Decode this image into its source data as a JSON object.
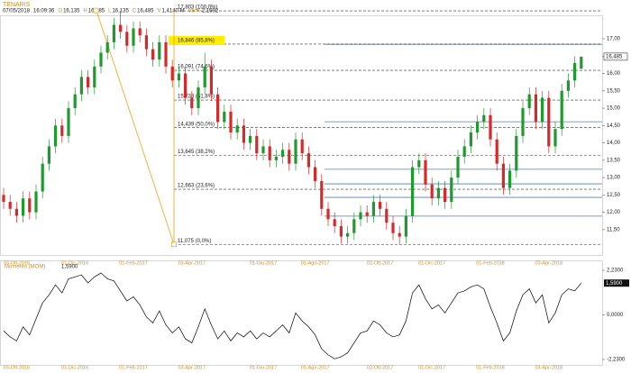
{
  "header": {
    "title": "TENARIS",
    "fields": [
      {
        "label": "D",
        "value": "07/05/2018"
      },
      {
        "label": "T",
        "value": "16:09:36"
      },
      {
        "label": "O",
        "value": "16,135"
      },
      {
        "label": "H",
        "value": "16,485"
      },
      {
        "label": "L",
        "value": "16,135"
      },
      {
        "label": "C",
        "value": "16,485"
      },
      {
        "label": "V",
        "value": "1,4140 M"
      },
      {
        "label": "Var%",
        "value": "2,1692"
      }
    ]
  },
  "chart_data": [
    {
      "type": "candlestick",
      "categories": [
        null,
        null,
        "03-Ott-2016",
        null,
        null,
        null,
        null,
        null,
        null,
        null,
        null,
        "01-Dic-2016",
        null,
        null,
        null,
        null,
        null,
        null,
        null,
        null,
        "01-Feb-2017",
        null,
        null,
        null,
        null,
        null,
        null,
        null,
        null,
        "03-Apr-2017",
        null,
        null,
        null,
        null,
        null,
        null,
        null,
        null,
        null,
        null,
        "01-Giu-2017",
        null,
        null,
        null,
        null,
        null,
        null,
        null,
        "01-Ago-2017",
        null,
        null,
        null,
        null,
        null,
        null,
        null,
        null,
        null,
        "02-Ott-2017",
        null,
        null,
        null,
        null,
        null,
        null,
        null,
        "01-Dic-2017",
        null,
        null,
        null,
        null,
        null,
        null,
        null,
        null,
        "01-Feb-2018",
        null,
        null,
        null,
        null,
        null,
        null,
        null,
        null,
        "03-Apr-2018",
        null,
        null,
        null,
        null,
        null
      ],
      "open": [
        12.5,
        12.3,
        12.1,
        11.9,
        12.4,
        12.0,
        12.6,
        13.4,
        13.9,
        14.5,
        14.2,
        15.0,
        15.4,
        15.9,
        15.6,
        16.2,
        16.6,
        16.9,
        17.4,
        17.2,
        16.8,
        17.3,
        17.1,
        16.7,
        16.4,
        16.9,
        16.2,
        15.8,
        16.0,
        15.3,
        15.0,
        15.6,
        16.2,
        15.4,
        14.6,
        14.9,
        14.3,
        14.5,
        14.0,
        14.2,
        13.7,
        13.9,
        13.5,
        13.6,
        13.8,
        13.4,
        14.1,
        13.7,
        13.3,
        12.9,
        12.1,
        11.8,
        11.6,
        11.3,
        11.4,
        11.8,
        12.0,
        11.9,
        12.3,
        12.1,
        11.7,
        11.4,
        11.3,
        11.9,
        13.3,
        13.5,
        12.8,
        12.4,
        12.7,
        12.3,
        13.0,
        13.6,
        13.9,
        14.3,
        14.6,
        14.8,
        14.1,
        13.4,
        12.7,
        13.2,
        14.2,
        15.0,
        15.4,
        14.6,
        15.3,
        13.9,
        14.4,
        15.5,
        15.8,
        16.135
      ],
      "high": [
        12.7,
        12.5,
        12.3,
        12.6,
        12.6,
        12.8,
        13.6,
        14.1,
        14.7,
        14.7,
        15.2,
        15.6,
        16.1,
        16.1,
        16.4,
        16.8,
        17.1,
        17.6,
        17.803,
        17.4,
        17.5,
        17.5,
        17.3,
        16.9,
        17.1,
        17.1,
        16.4,
        16.2,
        16.2,
        15.5,
        15.8,
        16.6,
        16.4,
        15.6,
        15.1,
        15.1,
        14.7,
        14.7,
        14.4,
        14.4,
        14.1,
        14.1,
        13.8,
        14.0,
        14.0,
        14.3,
        14.3,
        13.9,
        13.5,
        13.1,
        12.3,
        12.0,
        11.8,
        11.6,
        12.0,
        12.2,
        12.2,
        12.5,
        12.5,
        12.3,
        11.9,
        11.6,
        12.1,
        13.5,
        13.7,
        13.7,
        13.0,
        12.9,
        12.9,
        13.2,
        13.8,
        14.1,
        14.5,
        14.8,
        15.0,
        15.0,
        14.3,
        13.6,
        13.4,
        14.4,
        15.2,
        15.6,
        15.6,
        15.5,
        15.5,
        14.6,
        15.7,
        16.0,
        16.5,
        16.485
      ],
      "low": [
        12.1,
        11.9,
        11.7,
        11.7,
        11.8,
        11.8,
        12.4,
        13.2,
        13.7,
        14.0,
        14.0,
        14.8,
        15.2,
        15.4,
        15.4,
        16.0,
        16.4,
        16.7,
        17.0,
        16.6,
        16.6,
        16.9,
        16.5,
        16.2,
        16.2,
        16.0,
        15.6,
        15.6,
        15.1,
        14.8,
        14.8,
        15.4,
        15.2,
        14.4,
        14.4,
        14.1,
        14.1,
        13.8,
        13.8,
        13.5,
        13.5,
        13.3,
        13.3,
        13.4,
        13.2,
        13.2,
        13.5,
        13.1,
        12.7,
        11.9,
        11.6,
        11.4,
        11.1,
        11.1,
        11.2,
        11.6,
        11.7,
        11.7,
        11.9,
        11.5,
        11.2,
        11.075,
        11.1,
        11.7,
        13.1,
        12.6,
        12.2,
        12.2,
        12.1,
        12.1,
        12.8,
        13.4,
        13.7,
        14.1,
        14.4,
        13.9,
        13.2,
        12.5,
        12.5,
        13.0,
        14.0,
        14.8,
        14.4,
        14.4,
        13.7,
        13.7,
        14.2,
        15.3,
        15.6,
        16.135
      ],
      "close": [
        12.3,
        12.1,
        11.9,
        12.4,
        12.0,
        12.6,
        13.4,
        13.9,
        14.5,
        14.2,
        15.0,
        15.4,
        15.9,
        15.6,
        16.2,
        16.6,
        16.9,
        17.4,
        17.2,
        16.8,
        17.3,
        17.1,
        16.7,
        16.4,
        16.9,
        16.2,
        15.8,
        16.0,
        15.3,
        15.0,
        15.6,
        16.2,
        15.4,
        14.6,
        14.9,
        14.3,
        14.5,
        14.0,
        14.2,
        13.7,
        13.9,
        13.5,
        13.6,
        13.8,
        13.4,
        14.1,
        13.7,
        13.3,
        12.9,
        12.1,
        11.8,
        11.6,
        11.3,
        11.4,
        11.8,
        12.0,
        11.9,
        12.3,
        12.1,
        11.7,
        11.4,
        11.3,
        11.9,
        13.3,
        13.5,
        12.8,
        12.4,
        12.7,
        12.3,
        13.0,
        13.6,
        13.9,
        14.3,
        14.6,
        14.8,
        14.1,
        13.4,
        12.7,
        13.2,
        14.2,
        15.0,
        15.4,
        14.6,
        15.3,
        13.9,
        14.4,
        15.5,
        15.8,
        16.3,
        16.485
      ],
      "last_label": "16,485",
      "up_color": "#1f9a2e",
      "down_color": "#d42a2a",
      "ylim": [
        10.77,
        17.65
      ],
      "yticks": [
        {
          "value": 11.5,
          "label": "11,50"
        },
        {
          "value": 12,
          "label": "12,00"
        },
        {
          "value": 12.5,
          "label": "12,50"
        },
        {
          "value": 13,
          "label": "13,00"
        },
        {
          "value": 13.5,
          "label": "13,50"
        },
        {
          "value": 14,
          "label": "14,00"
        },
        {
          "value": 14.5,
          "label": "14,50"
        },
        {
          "value": 15,
          "label": "15,00"
        },
        {
          "value": 15.5,
          "label": "15,50"
        },
        {
          "value": 16,
          "label": "16,00"
        },
        {
          "value": 16.5,
          "label": "16,50"
        },
        {
          "value": 17,
          "label": "17,00"
        }
      ],
      "fib_levels": [
        17.803,
        16.846,
        16.091,
        15.233,
        14.439,
        13.645,
        12.663,
        11.075
      ],
      "fib_labels": [
        "17,803 (100,0%)",
        "16,846 (85,8%)",
        "16,091 (74,6%)",
        "15,233 (61,8%)",
        "14,439 (50,0%)",
        "13,645 (38,2%)",
        "12,663 (23,6%)",
        "11,075 (0,0%)"
      ],
      "fib_color": "#e8a317",
      "hlines": [
        16.84,
        14.61,
        13.24,
        12.82,
        12.43,
        11.89
      ],
      "hline_color": "#4f7fc0"
    },
    {
      "type": "line",
      "title": "Momento (MOM)",
      "values": [
        -0.8,
        -1.1,
        -1.3,
        -0.6,
        -1.0,
        -0.2,
        0.6,
        1.0,
        1.5,
        1.1,
        1.8,
        1.9,
        2.0,
        1.6,
        1.9,
        2.1,
        1.8,
        1.7,
        1.2,
        0.7,
        0.9,
        0.5,
        -0.1,
        -0.4,
        0.2,
        -0.5,
        -0.9,
        -0.6,
        -1.2,
        -1.4,
        -0.6,
        0.3,
        -0.5,
        -1.2,
        -0.8,
        -1.3,
        -0.9,
        -1.1,
        -0.8,
        -1.2,
        -0.9,
        -1.1,
        -0.8,
        -0.5,
        -0.9,
        0.1,
        -0.3,
        -0.6,
        -1.0,
        -1.7,
        -2.0,
        -2.2,
        -2.1,
        -1.9,
        -1.4,
        -0.9,
        -0.8,
        -0.3,
        -0.5,
        -0.9,
        -1.1,
        -1.0,
        -0.3,
        1.1,
        1.5,
        0.8,
        0.3,
        0.5,
        0.1,
        0.6,
        1.1,
        1.2,
        1.4,
        1.5,
        1.3,
        0.4,
        -0.4,
        -1.3,
        -0.9,
        0.2,
        1.0,
        1.3,
        0.6,
        1.0,
        -0.4,
        0.1,
        1.0,
        1.3,
        1.2,
        1.59
      ],
      "last_label": "1,5900",
      "color": "#000000",
      "ylim": [
        -2.5,
        2.68
      ],
      "yticks": [
        {
          "value": 2.23,
          "label": "2,2300"
        },
        {
          "value": 0,
          "label": "0,0000"
        },
        {
          "value": -2.23,
          "label": "-2,2300"
        }
      ]
    }
  ]
}
